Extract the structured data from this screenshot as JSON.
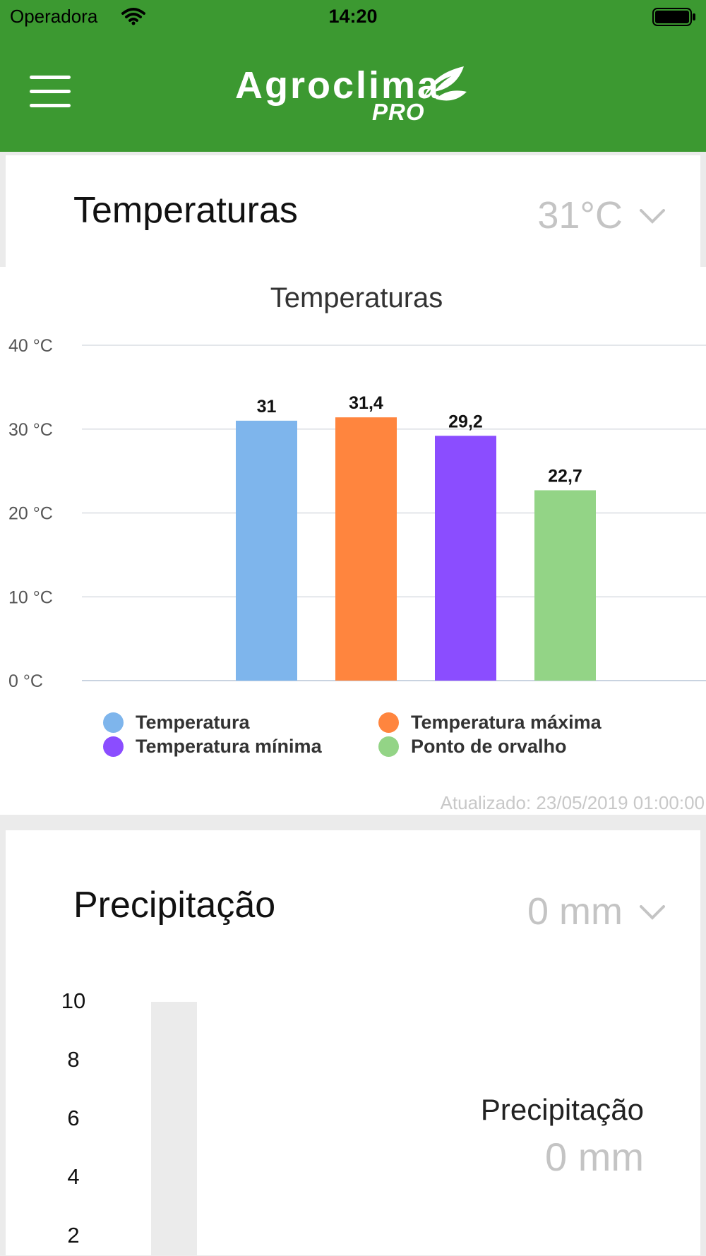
{
  "status_bar": {
    "carrier": "Operadora",
    "time": "14:20"
  },
  "header": {
    "logo_word": "Agroclima",
    "logo_sub": "PRO",
    "brand_color": "#3c9931"
  },
  "temperature_card": {
    "title": "Temperaturas",
    "current_value": "31°C",
    "updated": "Atualizado: 23/05/2019 01:00:00"
  },
  "precipitation_card": {
    "title": "Precipitação",
    "current_value": "0 mm",
    "gauge_label": "Precipitação",
    "gauge_value": "0 mm",
    "axis_ticks": [
      "10",
      "8",
      "6",
      "4",
      "2"
    ],
    "level": 0
  },
  "chart_data": {
    "type": "bar",
    "title": "Temperaturas",
    "ylim": [
      0,
      40
    ],
    "y_ticks": [
      "40 °C",
      "30 °C",
      "20 °C",
      "10 °C",
      "0 °C"
    ],
    "grid": true,
    "legend_placement": "bottom",
    "series": [
      {
        "name": "Temperatura",
        "value": 31,
        "label": "31",
        "color": "#7eb5ec"
      },
      {
        "name": "Temperatura máxima",
        "value": 31.4,
        "label": "31,4",
        "color": "#ff853e"
      },
      {
        "name": "Temperatura mínima",
        "value": 29.2,
        "label": "29,2",
        "color": "#8b4dff"
      },
      {
        "name": "Ponto de orvalho",
        "value": 22.7,
        "label": "22,7",
        "color": "#93d486"
      }
    ]
  }
}
